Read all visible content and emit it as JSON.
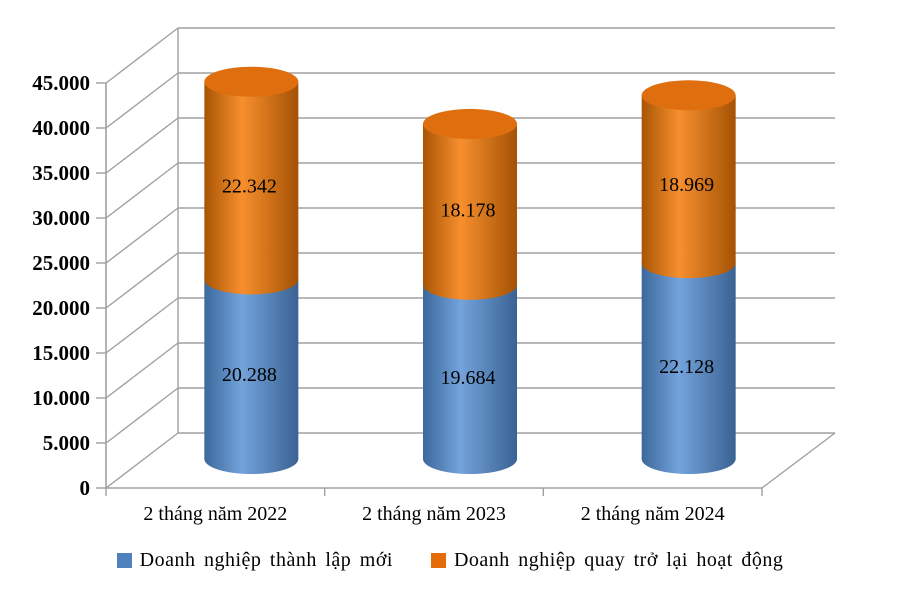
{
  "chart_data": {
    "type": "bar",
    "variant": "3d-stacked-cylinder",
    "title": "",
    "xlabel": "",
    "ylabel": "",
    "categories": [
      "2 tháng năm 2022",
      "2 tháng năm 2023",
      "2 tháng năm 2024"
    ],
    "series": [
      {
        "name": "Doanh nghiệp thành lập mới",
        "color": "#4F81BD",
        "gradient": [
          "#3C689C",
          "#73A3DB",
          "#3A6293"
        ],
        "top_color": "#4E7DB5",
        "values": [
          20288,
          19684,
          22128
        ],
        "labels": [
          "20.288",
          "19.684",
          "22.128"
        ]
      },
      {
        "name": "Doanh nghiệp quay trở lại hoạt động",
        "color": "#E36C09",
        "gradient": [
          "#A85505",
          "#F78F2E",
          "#A45204"
        ],
        "top_color": "#DF6F0E",
        "values": [
          22342,
          18178,
          18969
        ],
        "labels": [
          "22.342",
          "18.178",
          "18.969"
        ]
      }
    ],
    "ylim": [
      0,
      45000
    ],
    "ytick_step": 5000,
    "ytick_labels": [
      "0",
      "5.000",
      "10.000",
      "15.000",
      "20.000",
      "25.000",
      "30.000",
      "35.000",
      "40.000",
      "45.000"
    ],
    "grid": true,
    "legend_position": "bottom",
    "frame_color": "#A0A0A0",
    "text_color": "#000000"
  }
}
